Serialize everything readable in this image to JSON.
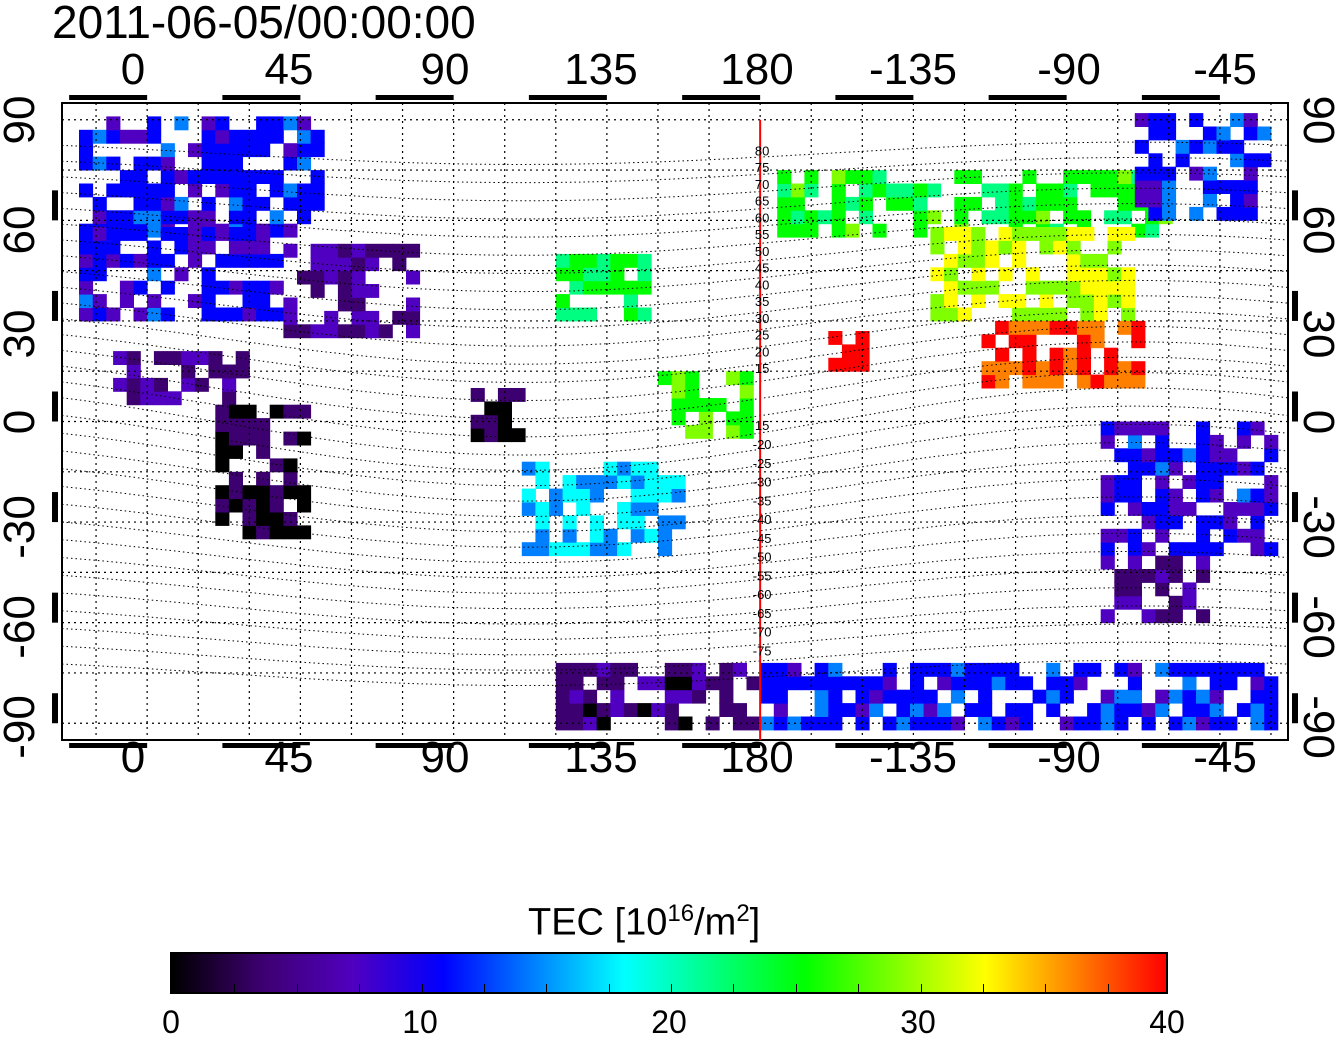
{
  "title": "2011-06-05/00:00:00",
  "axes": {
    "lon_ticks_top": [
      "0",
      "45",
      "90",
      "135",
      "180",
      "-135",
      "-90",
      "-45"
    ],
    "lon_ticks_bottom": [
      "0",
      "45",
      "90",
      "135",
      "180",
      "-135",
      "-90",
      "-45"
    ],
    "lat_ticks": [
      "90",
      "60",
      "30",
      "0",
      "-30",
      "-60",
      "-90"
    ],
    "lon_range": [
      -25,
      335
    ],
    "lat_range": [
      -95,
      95
    ],
    "grid": true
  },
  "meridian_line": {
    "lon": 180,
    "color": "#ff0000"
  },
  "magnetic_latitude_labels_north": [
    "80",
    "75",
    "70",
    "65",
    "60",
    "55",
    "50",
    "45",
    "40",
    "35",
    "30",
    "25",
    "20",
    "15"
  ],
  "magnetic_latitude_labels_south": [
    "15",
    "-20",
    "-25",
    "-30",
    "-35",
    "-40",
    "-45",
    "-50",
    "-55",
    "-60",
    "-65",
    "-70",
    "-75"
  ],
  "colorbar": {
    "label_prefix": "TEC  [10",
    "label_exp1": "16",
    "label_mid": "/m",
    "label_exp2": "2",
    "label_suffix": "]",
    "ticks": [
      "0",
      "10",
      "20",
      "30",
      "40"
    ],
    "range": [
      0,
      40
    ],
    "colors": [
      "#000000",
      "#3d0070",
      "#5000c0",
      "#0000ff",
      "#0080ff",
      "#00ffff",
      "#00ff80",
      "#00ff00",
      "#80ff00",
      "#ffff00",
      "#ff8000",
      "#ff0000"
    ]
  },
  "chart_data": {
    "type": "heatmap",
    "title": "2011-06-05/00:00:00",
    "xlabel": "",
    "ylabel": "",
    "colorbar_label": "TEC [10^16/m^2]",
    "value_range": [
      0,
      40
    ],
    "regions": [
      {
        "lon": [
          -20,
          50
        ],
        "lat": [
          55,
          90
        ],
        "tec": 11
      },
      {
        "lon": [
          -20,
          40
        ],
        "lat": [
          30,
          55
        ],
        "tec": 10
      },
      {
        "lon": [
          40,
          80
        ],
        "lat": [
          25,
          50
        ],
        "tec": 6
      },
      {
        "lon": [
          -10,
          30
        ],
        "lat": [
          5,
          20
        ],
        "tec": 5
      },
      {
        "lon": [
          20,
          45
        ],
        "lat": [
          -35,
          5
        ],
        "tec": 2
      },
      {
        "lon": [
          95,
          110
        ],
        "lat": [
          -10,
          10
        ],
        "tec": 1
      },
      {
        "lon": [
          120,
          145
        ],
        "lat": [
          30,
          50
        ],
        "tec": 24
      },
      {
        "lon": [
          110,
          155
        ],
        "lat": [
          -40,
          -15
        ],
        "tec": 17
      },
      {
        "lon": [
          150,
          175
        ],
        "lat": [
          -5,
          15
        ],
        "tec": 27
      },
      {
        "lon": [
          185,
          300
        ],
        "lat": [
          55,
          75
        ],
        "tec": 25
      },
      {
        "lon": [
          230,
          290
        ],
        "lat": [
          30,
          55
        ],
        "tec": 31
      },
      {
        "lon": [
          245,
          290
        ],
        "lat": [
          10,
          30
        ],
        "tec": 38
      },
      {
        "lon": [
          200,
          210
        ],
        "lat": [
          15,
          25
        ],
        "tec": 40
      },
      {
        "lon": [
          280,
          330
        ],
        "lat": [
          -40,
          0
        ],
        "tec": 10
      },
      {
        "lon": [
          280,
          310
        ],
        "lat": [
          -60,
          -40
        ],
        "tec": 5
      },
      {
        "lon": [
          120,
          180
        ],
        "lat": [
          -92,
          -75
        ],
        "tec": 4
      },
      {
        "lon": [
          180,
          330
        ],
        "lat": [
          -92,
          -75
        ],
        "tec": 11
      },
      {
        "lon": [
          290,
          330
        ],
        "lat": [
          60,
          90
        ],
        "tec": 11
      }
    ]
  }
}
